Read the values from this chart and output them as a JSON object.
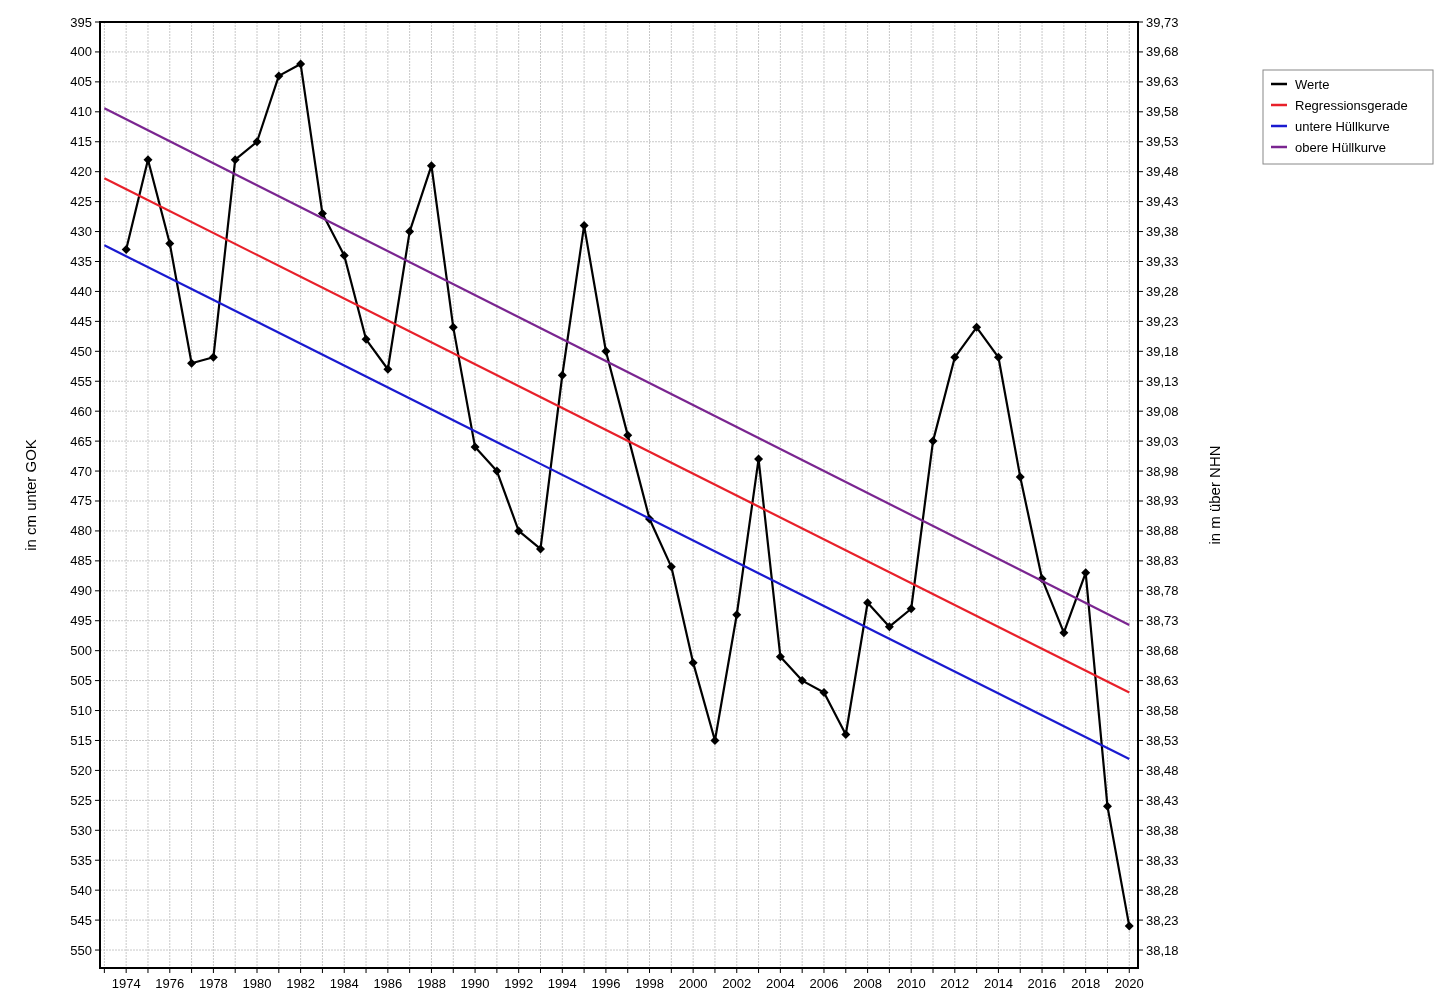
{
  "chart_data": {
    "type": "line",
    "ylabel": "in cm unter GOK",
    "y2label": "in m über NHN",
    "xlim": [
      1972.8,
      2020.4
    ],
    "ylim": [
      553,
      395
    ],
    "y2lim": [
      38.15,
      39.73
    ],
    "xticks": [
      {
        "value": 1973,
        "label": null
      },
      1974,
      {
        "value": 1975,
        "label": null
      },
      1976,
      {
        "value": 1977,
        "label": null
      },
      1978,
      {
        "value": 1979,
        "label": null
      },
      1980,
      {
        "value": 1981,
        "label": null
      },
      1982,
      {
        "value": 1983,
        "label": null
      },
      1984,
      {
        "value": 1985,
        "label": null
      },
      1986,
      {
        "value": 1987,
        "label": null
      },
      1988,
      {
        "value": 1989,
        "label": null
      },
      1990,
      {
        "value": 1991,
        "label": null
      },
      1992,
      {
        "value": 1993,
        "label": null
      },
      1994,
      {
        "value": 1995,
        "label": null
      },
      1996,
      {
        "value": 1997,
        "label": null
      },
      1998,
      {
        "value": 1999,
        "label": null
      },
      2000,
      {
        "value": 2001,
        "label": null
      },
      2002,
      {
        "value": 2003,
        "label": null
      },
      2004,
      {
        "value": 2005,
        "label": null
      },
      2006,
      {
        "value": 2007,
        "label": null
      },
      2008,
      {
        "value": 2009,
        "label": null
      },
      2010,
      {
        "value": 2011,
        "label": null
      },
      2012,
      {
        "value": 2013,
        "label": null
      },
      2014,
      {
        "value": 2015,
        "label": null
      },
      2016,
      {
        "value": 2017,
        "label": null
      },
      2018,
      {
        "value": 2019,
        "label": null
      },
      2020
    ],
    "yticks": [
      395,
      400,
      405,
      410,
      415,
      420,
      425,
      430,
      435,
      440,
      445,
      450,
      455,
      460,
      465,
      470,
      475,
      480,
      485,
      490,
      495,
      500,
      505,
      510,
      515,
      520,
      525,
      530,
      535,
      540,
      545,
      550
    ],
    "y2ticks": [
      {
        "value": 39.73,
        "label": "39,73"
      },
      {
        "value": 39.68,
        "label": "39,68"
      },
      {
        "value": 39.63,
        "label": "39,63"
      },
      {
        "value": 39.58,
        "label": "39,58"
      },
      {
        "value": 39.53,
        "label": "39,53"
      },
      {
        "value": 39.48,
        "label": "39,48"
      },
      {
        "value": 39.43,
        "label": "39,43"
      },
      {
        "value": 39.38,
        "label": "39,38"
      },
      {
        "value": 39.33,
        "label": "39,33"
      },
      {
        "value": 39.28,
        "label": "39,28"
      },
      {
        "value": 39.23,
        "label": "39,23"
      },
      {
        "value": 39.18,
        "label": "39,18"
      },
      {
        "value": 39.13,
        "label": "39,13"
      },
      {
        "value": 39.08,
        "label": "39,08"
      },
      {
        "value": 39.03,
        "label": "39,03"
      },
      {
        "value": 38.98,
        "label": "38,98"
      },
      {
        "value": 38.93,
        "label": "38,93"
      },
      {
        "value": 38.88,
        "label": "38,88"
      },
      {
        "value": 38.83,
        "label": "38,83"
      },
      {
        "value": 38.78,
        "label": "38,78"
      },
      {
        "value": 38.73,
        "label": "38,73"
      },
      {
        "value": 38.68,
        "label": "38,68"
      },
      {
        "value": 38.63,
        "label": "38,63"
      },
      {
        "value": 38.58,
        "label": "38,58"
      },
      {
        "value": 38.53,
        "label": "38,53"
      },
      {
        "value": 38.48,
        "label": "38,48"
      },
      {
        "value": 38.43,
        "label": "38,43"
      },
      {
        "value": 38.38,
        "label": "38,38"
      },
      {
        "value": 38.33,
        "label": "38,33"
      },
      {
        "value": 38.28,
        "label": "38,28"
      },
      {
        "value": 38.23,
        "label": "38,23"
      },
      {
        "value": 38.18,
        "label": "38,18"
      }
    ],
    "grid": true,
    "legend": "top right",
    "series": [
      {
        "name": "Werte",
        "color": "#000000",
        "marker": "diamond",
        "x": [
          1974,
          1975,
          1976,
          1977,
          1978,
          1979,
          1980,
          1981,
          1982,
          1983,
          1984,
          1985,
          1986,
          1987,
          1988,
          1989,
          1990,
          1991,
          1992,
          1993,
          1994,
          1995,
          1996,
          1997,
          1998,
          1999,
          2000,
          2001,
          2002,
          2003,
          2004,
          2005,
          2006,
          2007,
          2008,
          2009,
          2010,
          2011,
          2012,
          2013,
          2014,
          2015,
          2016,
          2017,
          2018,
          2019,
          2020
        ],
        "values": [
          433,
          418,
          432,
          452,
          451,
          418,
          415,
          404,
          402,
          427,
          434,
          448,
          453,
          430,
          419,
          446,
          466,
          470,
          480,
          483,
          454,
          429,
          450,
          464,
          478,
          486,
          502,
          515,
          494,
          468,
          501,
          505,
          507,
          514,
          492,
          496,
          493,
          465,
          451,
          446,
          451,
          471,
          488,
          497,
          487,
          526,
          546
        ]
      },
      {
        "name": "Regressionsgerade",
        "color": "#e8202a",
        "marker": "none",
        "x": [
          1973,
          2020
        ],
        "values": [
          421.1,
          507
        ]
      },
      {
        "name": "untere Hüllkurve",
        "color": "#1a1ad0",
        "marker": "none",
        "x": [
          1973,
          2020
        ],
        "values": [
          432.3,
          518.1
        ]
      },
      {
        "name": "obere Hüllkurve",
        "color": "#7a2590",
        "marker": "none",
        "x": [
          1973,
          2020
        ],
        "values": [
          409.4,
          495.7
        ]
      }
    ]
  }
}
